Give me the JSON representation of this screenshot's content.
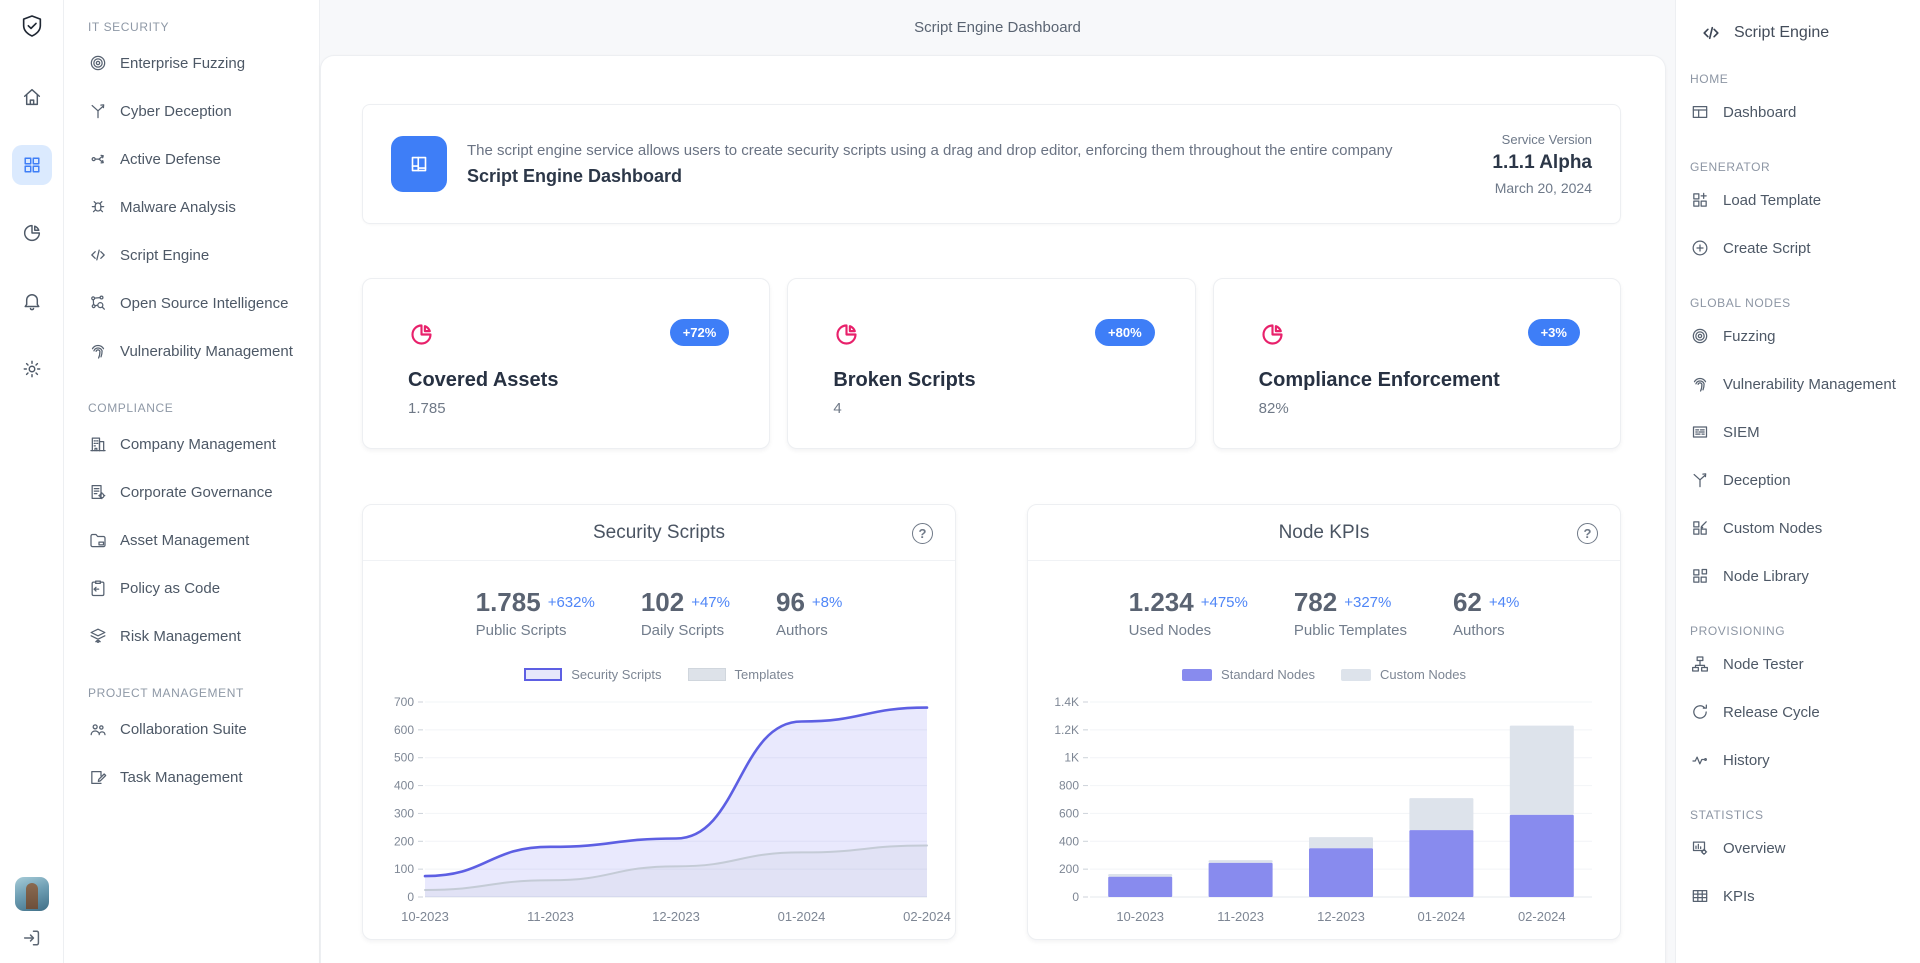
{
  "app": {
    "top_title": "Script Engine Dashboard"
  },
  "icon_rail": {
    "logo_icon": "shield-check-icon",
    "items": [
      {
        "icon": "home-icon",
        "active": false
      },
      {
        "icon": "apps-grid-icon",
        "active": true
      },
      {
        "icon": "pie-chart-icon",
        "active": false
      },
      {
        "icon": "bell-icon",
        "active": false
      },
      {
        "icon": "gear-icon",
        "active": false
      }
    ],
    "avatar_icon": "user-avatar",
    "logout_icon": "logout-icon"
  },
  "left_nav": {
    "sections": [
      {
        "label": "IT SECURITY",
        "items": [
          {
            "icon": "fuzzing-icon",
            "label": "Enterprise Fuzzing"
          },
          {
            "icon": "deception-icon",
            "label": "Cyber Deception"
          },
          {
            "icon": "active-defense-icon",
            "label": "Active Defense"
          },
          {
            "icon": "malware-icon",
            "label": "Malware Analysis"
          },
          {
            "icon": "code-icon",
            "label": "Script Engine"
          },
          {
            "icon": "osint-icon",
            "label": "Open Source Intelligence"
          },
          {
            "icon": "fingerprint-icon",
            "label": "Vulnerability Management"
          }
        ]
      },
      {
        "label": "COMPLIANCE",
        "items": [
          {
            "icon": "building-icon",
            "label": "Company Management"
          },
          {
            "icon": "doc-gear-icon",
            "label": "Corporate Governance"
          },
          {
            "icon": "folder-icon",
            "label": "Asset Management"
          },
          {
            "icon": "clipboard-icon",
            "label": "Policy as Code"
          },
          {
            "icon": "layers-eye-icon",
            "label": "Risk Management"
          }
        ]
      },
      {
        "label": "PROJECT MANAGEMENT",
        "items": [
          {
            "icon": "people-icon",
            "label": "Collaboration Suite"
          },
          {
            "icon": "doc-edit-icon",
            "label": "Task Management"
          }
        ]
      }
    ]
  },
  "banner": {
    "icon": "layout-icon",
    "description": "The script engine service allows users to create security scripts using a drag and drop editor, enforcing them throughout the entire company",
    "title": "Script Engine Dashboard",
    "version_label": "Service Version",
    "version": "1.1.1 Alpha",
    "date": "March 20, 2024"
  },
  "stat_cards": [
    {
      "icon": "pie-chart-icon",
      "badge": "+72%",
      "title": "Covered Assets",
      "value": "1.785"
    },
    {
      "icon": "pie-chart-icon",
      "badge": "+80%",
      "title": "Broken Scripts",
      "value": "4"
    },
    {
      "icon": "pie-chart-icon",
      "badge": "+3%",
      "title": "Compliance Enforcement",
      "value": "82%"
    }
  ],
  "chart_data": [
    {
      "type": "area",
      "title": "Security Scripts",
      "help_icon": "help-icon",
      "stats": [
        {
          "value": "1.785",
          "delta": "+632%",
          "label": "Public Scripts"
        },
        {
          "value": "102",
          "delta": "+47%",
          "label": "Daily Scripts"
        },
        {
          "value": "96",
          "delta": "+8%",
          "label": "Authors"
        }
      ],
      "categories": [
        "10-2023",
        "11-2023",
        "12-2023",
        "01-2024",
        "02-2024"
      ],
      "series": [
        {
          "name": "Security Scripts",
          "color": "#5d5fe3",
          "fill": "#6366f1",
          "values": [
            75,
            180,
            210,
            630,
            680
          ]
        },
        {
          "name": "Templates",
          "color": "#c4cbd6",
          "fill": "#9aa6b5",
          "values": [
            25,
            60,
            110,
            160,
            185
          ]
        }
      ],
      "ylim": [
        0,
        700
      ],
      "ytick": 100,
      "grid": true,
      "legend_position": "top"
    },
    {
      "type": "stacked-bar",
      "title": "Node KPIs",
      "help_icon": "help-icon",
      "stats": [
        {
          "value": "1.234",
          "delta": "+475%",
          "label": "Used Nodes"
        },
        {
          "value": "782",
          "delta": "+327%",
          "label": "Public Templates"
        },
        {
          "value": "62",
          "delta": "+4%",
          "label": "Authors"
        }
      ],
      "categories": [
        "10-2023",
        "11-2023",
        "12-2023",
        "01-2024",
        "02-2024"
      ],
      "series": [
        {
          "name": "Standard Nodes",
          "color": "#888bee",
          "values": [
            145,
            245,
            350,
            480,
            590
          ]
        },
        {
          "name": "Custom Nodes",
          "color": "#dde3eb",
          "values": [
            20,
            20,
            80,
            230,
            640
          ]
        }
      ],
      "ylim": [
        0,
        1400
      ],
      "ytick": 200,
      "grid": true,
      "legend_position": "top"
    }
  ],
  "right_sidebar": {
    "icon": "code-icon",
    "title": "Script Engine",
    "sections": [
      {
        "label": "HOME",
        "items": [
          {
            "icon": "dashboard-icon",
            "label": "Dashboard"
          }
        ]
      },
      {
        "label": "GENERATOR",
        "items": [
          {
            "icon": "grid-plus-icon",
            "label": "Load Template"
          },
          {
            "icon": "circle-plus-icon",
            "label": "Create Script"
          }
        ]
      },
      {
        "label": "GLOBAL NODES",
        "items": [
          {
            "icon": "fuzzing-icon",
            "label": "Fuzzing"
          },
          {
            "icon": "fingerprint-icon",
            "label": "Vulnerability Management"
          },
          {
            "icon": "siem-icon",
            "label": "SIEM"
          },
          {
            "icon": "deception-icon",
            "label": "Deception"
          },
          {
            "icon": "grid-edit-icon",
            "label": "Custom Nodes"
          },
          {
            "icon": "grid-copy-icon",
            "label": "Node Library"
          }
        ]
      },
      {
        "label": "PROVISIONING",
        "items": [
          {
            "icon": "org-icon",
            "label": "Node Tester"
          },
          {
            "icon": "refresh-icon",
            "label": "Release Cycle"
          },
          {
            "icon": "activity-icon",
            "label": "History"
          }
        ]
      },
      {
        "label": "STATISTICS",
        "items": [
          {
            "icon": "report-icon",
            "label": "Overview"
          },
          {
            "icon": "table-icon",
            "label": "KPIs"
          }
        ]
      }
    ]
  },
  "colors": {
    "accent": "#3e7ef7",
    "badge": "#3e7ef7",
    "pink": "#e8216b",
    "delta_blue": "#4f86f7",
    "active_bg": "#dbeafe"
  }
}
